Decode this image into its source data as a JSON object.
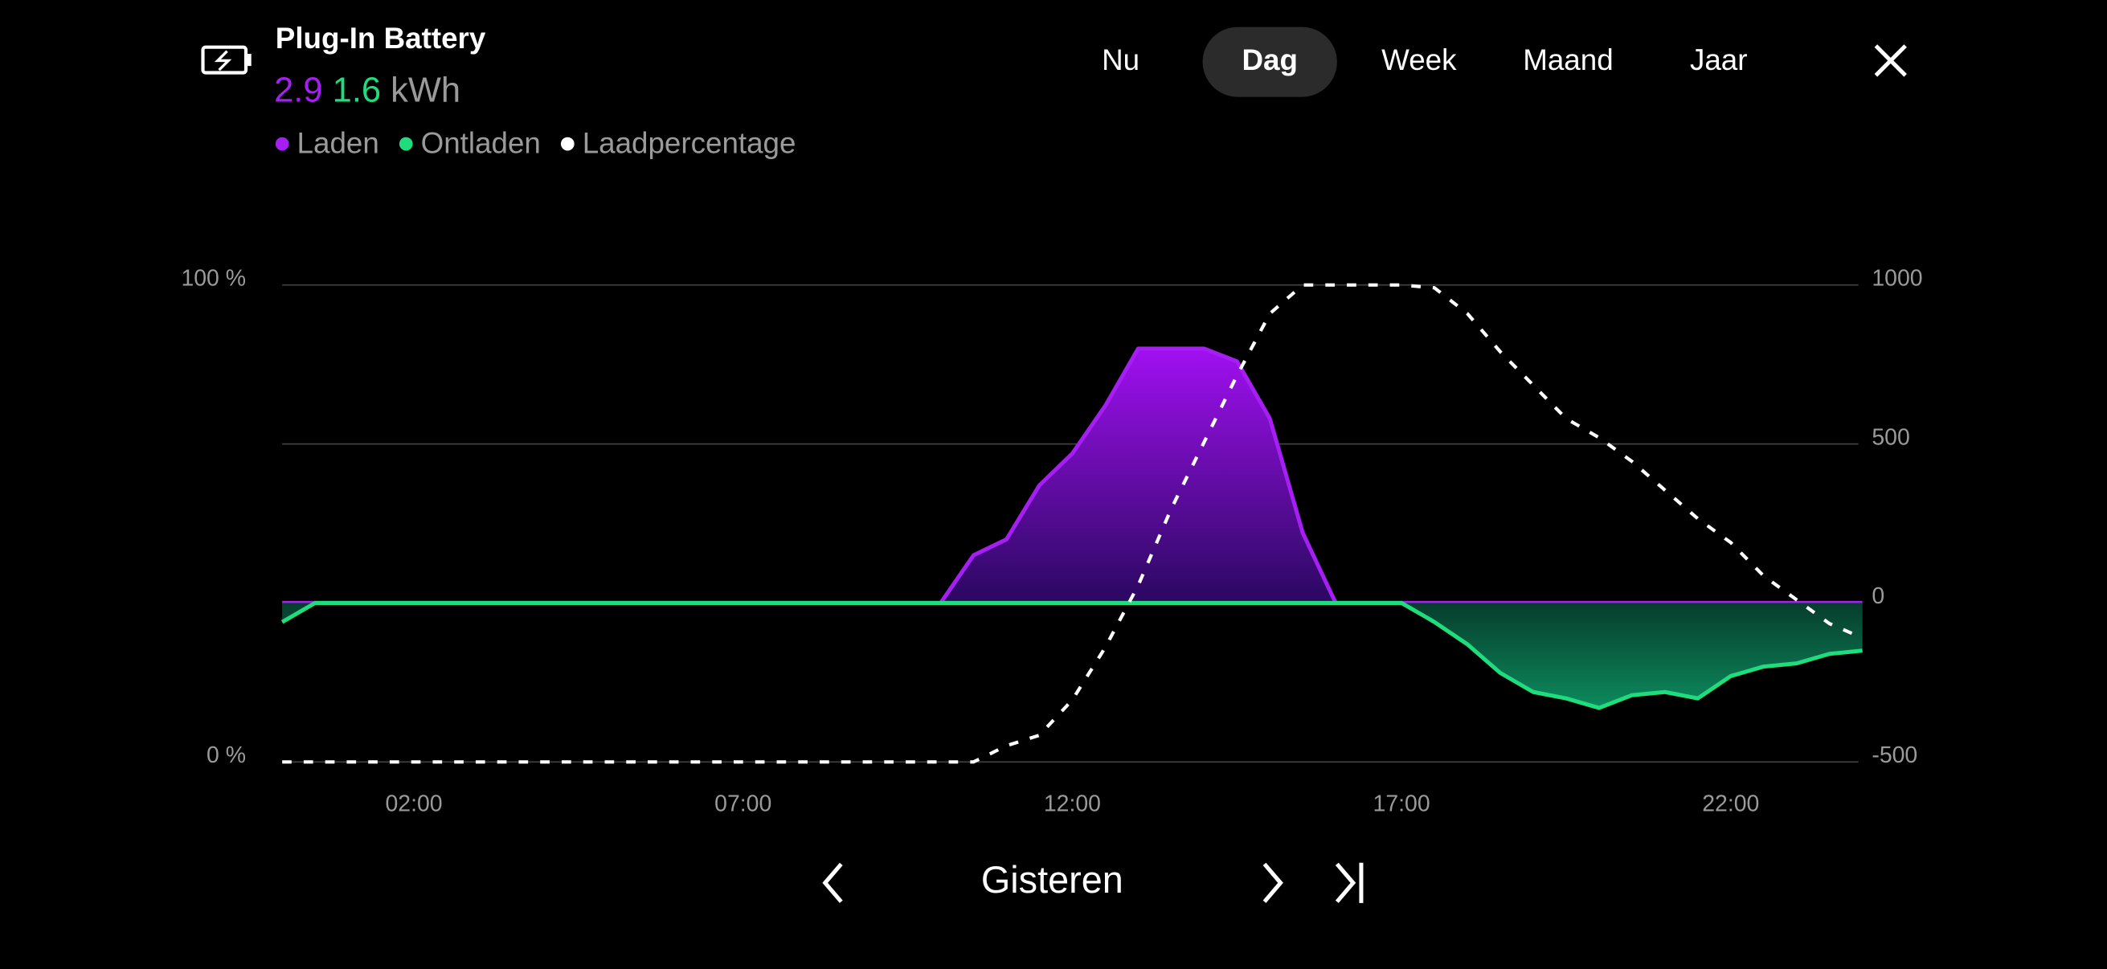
{
  "header": {
    "title": "Plug-In Battery",
    "charge": "2.9",
    "discharge": "1.6",
    "unit": "kWh"
  },
  "tabs": [
    "Nu",
    "Dag",
    "Week",
    "Maand",
    "Jaar"
  ],
  "selected_tab": "Dag",
  "footer": {
    "period": "Gisteren"
  },
  "chart_data": {
    "type": "line",
    "x": [
      0,
      0.5,
      1,
      1.5,
      2,
      2.5,
      3,
      3.5,
      4,
      4.5,
      5,
      5.5,
      6,
      6.5,
      7,
      7.5,
      8,
      8.5,
      9,
      9.5,
      10,
      10.5,
      11,
      11.5,
      12,
      12.5,
      13,
      13.5,
      14,
      14.5,
      15,
      15.5,
      16,
      16.5,
      17,
      17.5,
      18,
      18.5,
      19,
      19.5,
      20,
      20.5,
      21,
      21.5,
      22,
      22.5,
      23,
      23.5,
      24
    ],
    "xlim": [
      0,
      24
    ],
    "xticks": [
      {
        "value": 2,
        "label": "02:00"
      },
      {
        "value": 7,
        "label": "07:00"
      },
      {
        "value": 12,
        "label": "12:00"
      },
      {
        "value": 17,
        "label": "17:00"
      },
      {
        "value": 22,
        "label": "22:00"
      }
    ],
    "ylim": [
      -500,
      1000
    ],
    "yticks": [
      1000,
      500,
      0,
      -500
    ],
    "y2lim": [
      0,
      100
    ],
    "y2ticks": [
      {
        "value": 100,
        "label": "100 %"
      },
      {
        "value": 0,
        "label": "0 %"
      }
    ],
    "grid": true,
    "series": [
      {
        "name": "Laden",
        "color": "#a51ff2",
        "fill": true,
        "values": [
          0,
          0,
          0,
          0,
          0,
          0,
          0,
          0,
          0,
          0,
          0,
          0,
          0,
          0,
          0,
          0,
          0,
          0,
          0,
          0,
          0,
          150,
          200,
          370,
          470,
          620,
          800,
          800,
          800,
          760,
          580,
          220,
          0,
          0,
          0,
          0,
          0,
          0,
          0,
          0,
          0,
          0,
          0,
          0,
          0,
          0,
          0,
          0,
          0
        ]
      },
      {
        "name": "Ontladen",
        "color": "#1fdc7c",
        "fill": true,
        "values": [
          -60,
          0,
          0,
          0,
          0,
          0,
          0,
          0,
          0,
          0,
          0,
          0,
          0,
          0,
          0,
          0,
          0,
          0,
          0,
          0,
          0,
          0,
          0,
          0,
          0,
          0,
          0,
          0,
          0,
          0,
          0,
          0,
          0,
          0,
          0,
          -60,
          -130,
          -220,
          -280,
          -300,
          -330,
          -290,
          -280,
          -300,
          -230,
          -200,
          -190,
          -160,
          -150
        ]
      },
      {
        "name": "Laadpercentage",
        "color": "#ffffff",
        "axis": "y2",
        "dashed": true,
        "values": [
          0,
          0,
          0,
          0,
          0,
          0,
          0,
          0,
          0,
          0,
          0,
          0,
          0,
          0,
          0,
          0,
          0,
          0,
          0,
          0,
          0,
          0,
          3.4,
          5.6,
          13,
          24,
          37,
          53,
          67,
          81,
          94,
          100,
          100,
          100,
          100,
          99.4,
          94,
          86,
          79,
          72,
          68,
          63,
          57,
          51,
          46,
          39,
          34,
          29,
          26
        ]
      }
    ]
  }
}
